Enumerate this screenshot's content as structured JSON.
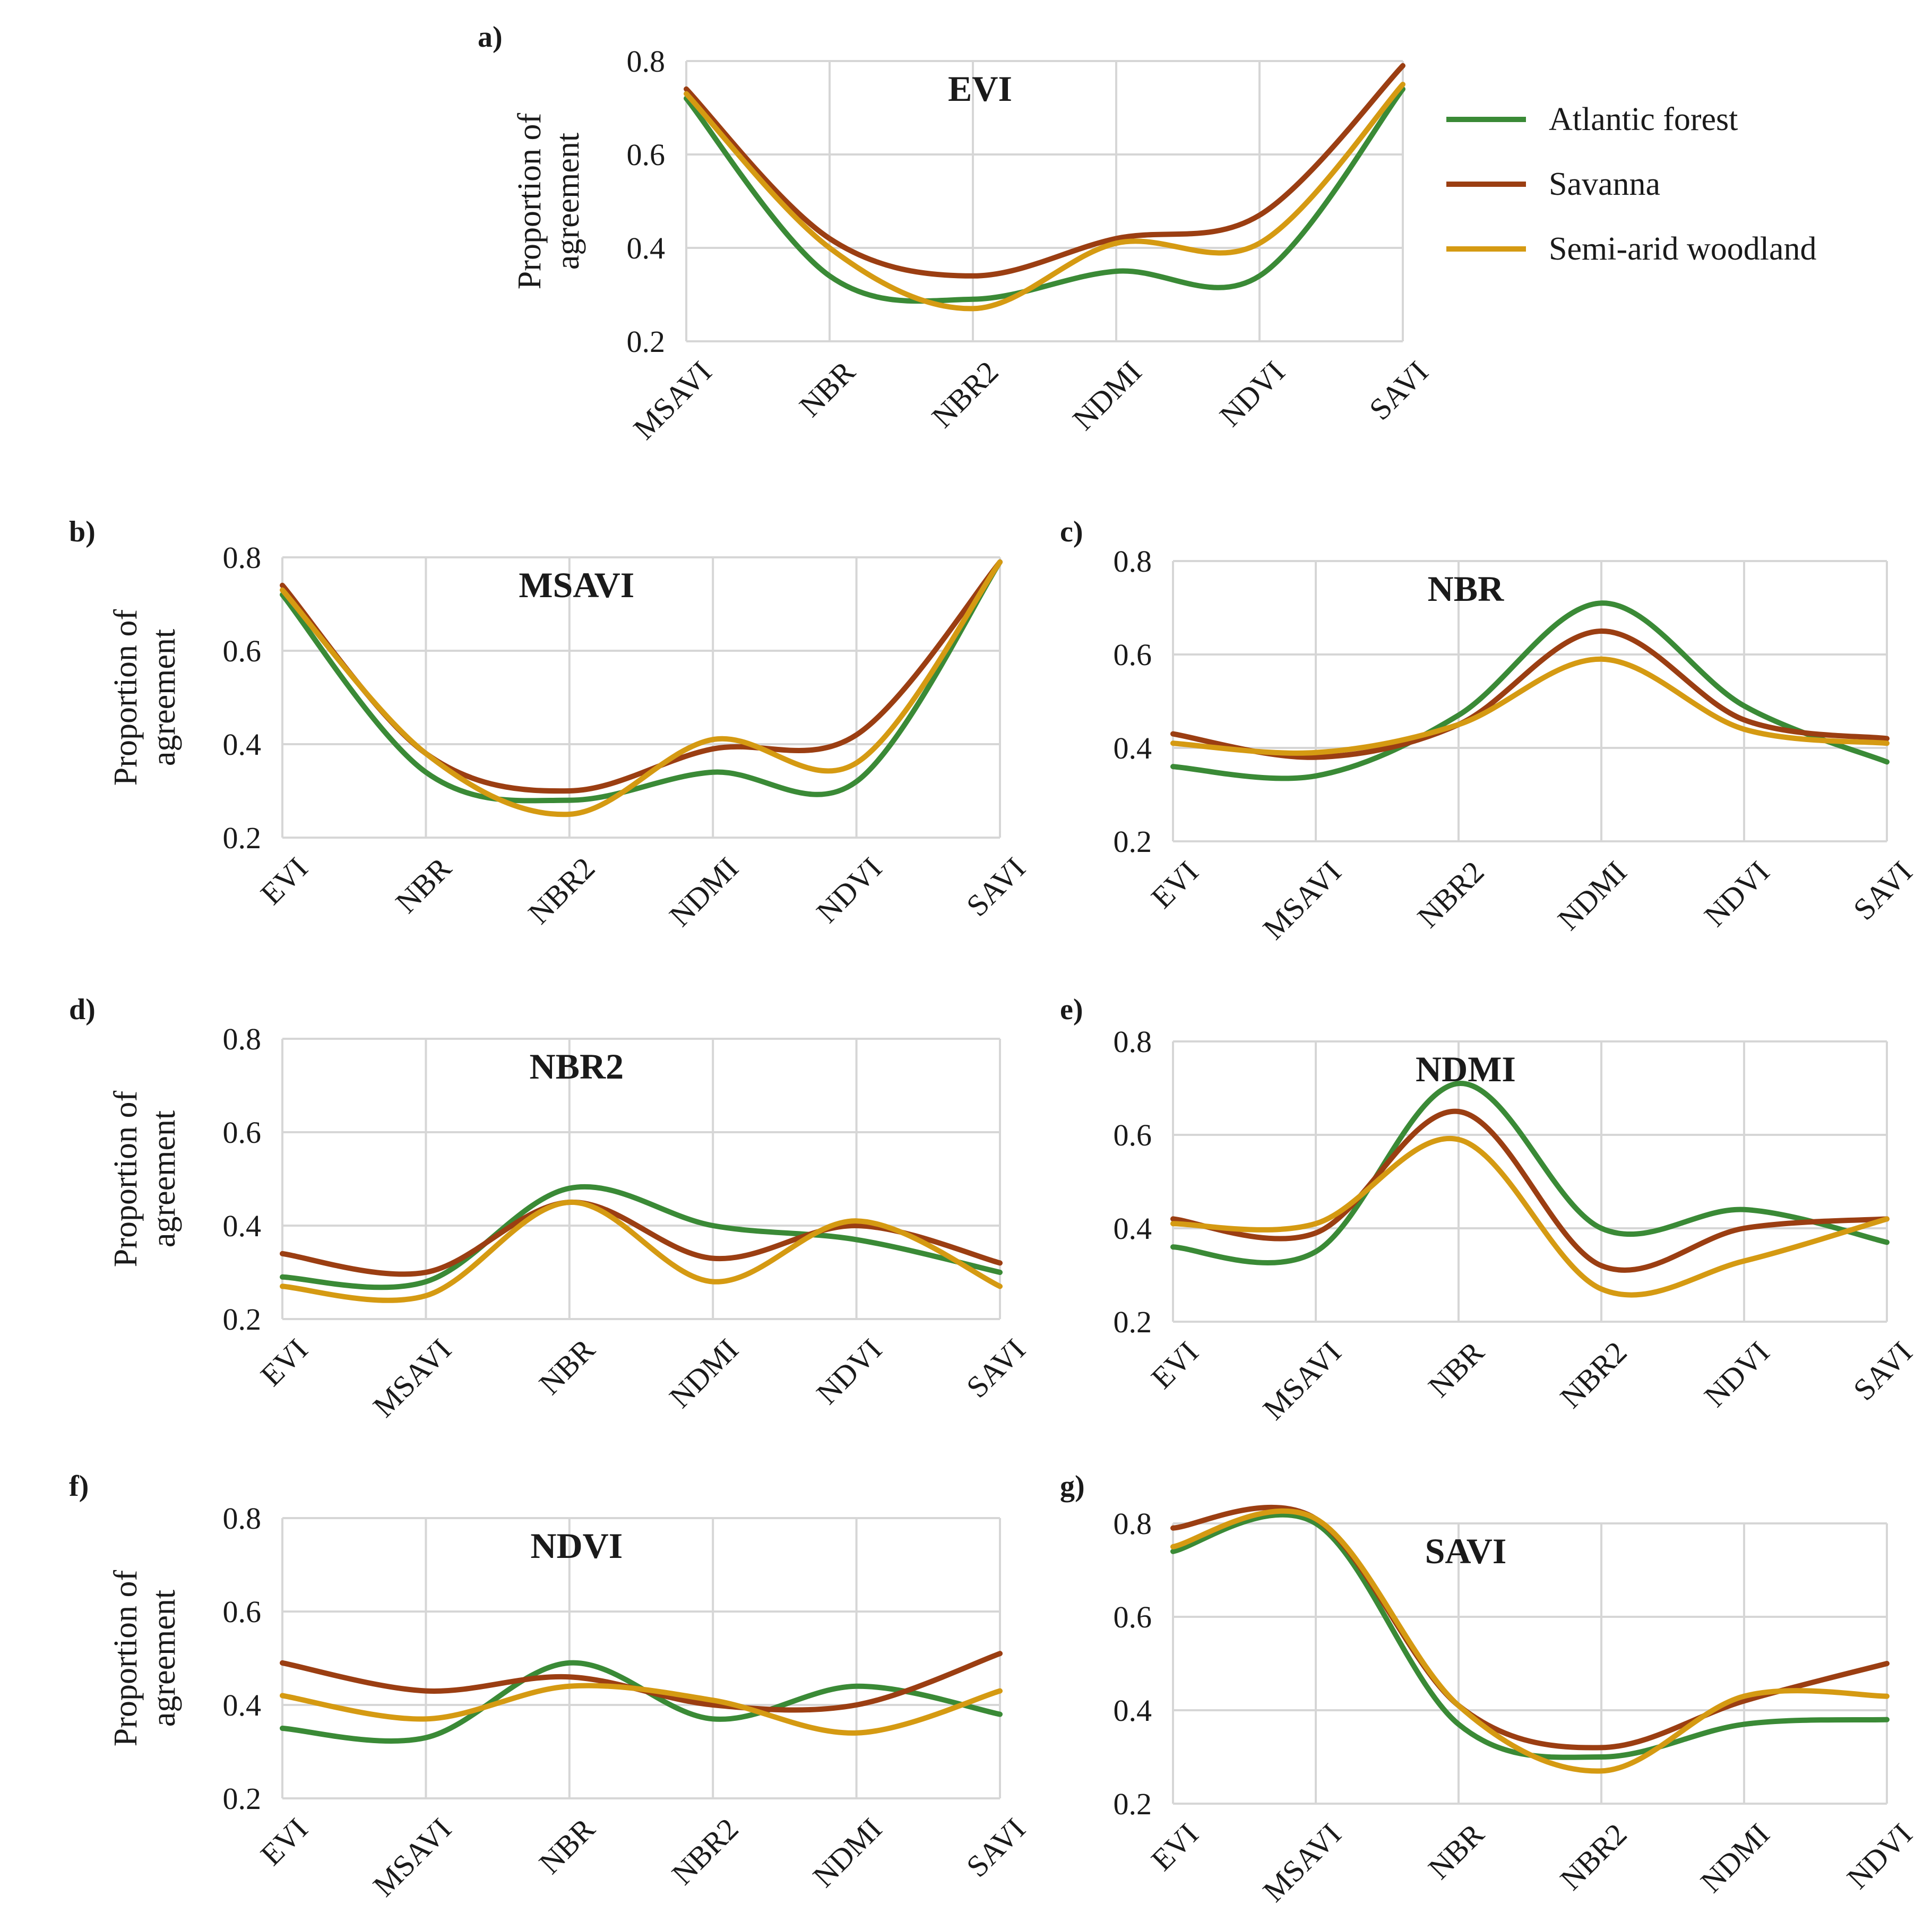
{
  "colors": {
    "Atlantic forest": "#3a8a36",
    "Savanna": "#9b3e12",
    "Semi-arid woodland": "#d59a12",
    "grid": "#d6d6d6"
  },
  "legend": [
    "Atlantic forest",
    "Savanna",
    "Semi-arid woodland"
  ],
  "chart_data": [
    {
      "panel": "a)",
      "type": "line",
      "title": "EVI",
      "ylabel": "Proportion of agreement",
      "ylim": [
        0.2,
        0.8
      ],
      "yticks": [
        "0.2",
        "0.4",
        "0.6",
        "0.8"
      ],
      "categories": [
        "MSAVI",
        "NBR",
        "NBR2",
        "NDMI",
        "NDVI",
        "SAVI"
      ],
      "series": [
        {
          "name": "Atlantic forest",
          "values": [
            0.72,
            0.34,
            0.29,
            0.35,
            0.34,
            0.74
          ]
        },
        {
          "name": "Savanna",
          "values": [
            0.74,
            0.42,
            0.34,
            0.42,
            0.47,
            0.79
          ]
        },
        {
          "name": "Semi-arid woodland",
          "values": [
            0.73,
            0.4,
            0.27,
            0.41,
            0.41,
            0.75
          ]
        }
      ]
    },
    {
      "panel": "b)",
      "type": "line",
      "title": "MSAVI",
      "ylabel": "Proportion of agreement",
      "ylim": [
        0.2,
        0.8
      ],
      "yticks": [
        "0.2",
        "0.4",
        "0.6",
        "0.8"
      ],
      "categories": [
        "EVI",
        "NBR",
        "NBR2",
        "NDMI",
        "NDVI",
        "SAVI"
      ],
      "series": [
        {
          "name": "Atlantic forest",
          "values": [
            0.72,
            0.34,
            0.28,
            0.34,
            0.32,
            0.79
          ]
        },
        {
          "name": "Savanna",
          "values": [
            0.74,
            0.38,
            0.3,
            0.39,
            0.42,
            0.79
          ]
        },
        {
          "name": "Semi-arid woodland",
          "values": [
            0.73,
            0.38,
            0.25,
            0.41,
            0.36,
            0.79
          ]
        }
      ]
    },
    {
      "panel": "c)",
      "type": "line",
      "title": "NBR",
      "ylabel": "",
      "ylim": [
        0.2,
        0.8
      ],
      "yticks": [
        "0.2",
        "0.4",
        "0.6",
        "0.8"
      ],
      "categories": [
        "EVI",
        "MSAVI",
        "NBR2",
        "NDMI",
        "NDVI",
        "SAVI"
      ],
      "series": [
        {
          "name": "Atlantic forest",
          "values": [
            0.36,
            0.34,
            0.47,
            0.71,
            0.49,
            0.37
          ]
        },
        {
          "name": "Savanna",
          "values": [
            0.43,
            0.38,
            0.45,
            0.65,
            0.46,
            0.42
          ]
        },
        {
          "name": "Semi-arid woodland",
          "values": [
            0.41,
            0.39,
            0.45,
            0.59,
            0.44,
            0.41
          ]
        }
      ]
    },
    {
      "panel": "d)",
      "type": "line",
      "title": "NBR2",
      "ylabel": "Proportion of agreement",
      "ylim": [
        0.2,
        0.8
      ],
      "yticks": [
        "0.2",
        "0.4",
        "0.6",
        "0.8"
      ],
      "categories": [
        "EVI",
        "MSAVI",
        "NBR",
        "NDMI",
        "NDVI",
        "SAVI"
      ],
      "series": [
        {
          "name": "Atlantic forest",
          "values": [
            0.29,
            0.28,
            0.48,
            0.4,
            0.37,
            0.3
          ]
        },
        {
          "name": "Savanna",
          "values": [
            0.34,
            0.3,
            0.45,
            0.33,
            0.4,
            0.32
          ]
        },
        {
          "name": "Semi-arid woodland",
          "values": [
            0.27,
            0.25,
            0.45,
            0.28,
            0.41,
            0.27
          ]
        }
      ]
    },
    {
      "panel": "e)",
      "type": "line",
      "title": "NDMI",
      "ylabel": "",
      "ylim": [
        0.2,
        0.8
      ],
      "yticks": [
        "0.2",
        "0.4",
        "0.6",
        "0.8"
      ],
      "categories": [
        "EVI",
        "MSAVI",
        "NBR",
        "NBR2",
        "NDVI",
        "SAVI"
      ],
      "series": [
        {
          "name": "Atlantic forest",
          "values": [
            0.36,
            0.35,
            0.71,
            0.4,
            0.44,
            0.37
          ]
        },
        {
          "name": "Savanna",
          "values": [
            0.42,
            0.39,
            0.65,
            0.32,
            0.4,
            0.42
          ]
        },
        {
          "name": "Semi-arid woodland",
          "values": [
            0.41,
            0.41,
            0.59,
            0.27,
            0.33,
            0.42
          ]
        }
      ]
    },
    {
      "panel": "f)",
      "type": "line",
      "title": "NDVI",
      "ylabel": "Proportion of agreement",
      "ylim": [
        0.2,
        0.8
      ],
      "yticks": [
        "0.2",
        "0.4",
        "0.6",
        "0.8"
      ],
      "categories": [
        "EVI",
        "MSAVI",
        "NBR",
        "NBR2",
        "NDMI",
        "SAVI"
      ],
      "series": [
        {
          "name": "Atlantic forest",
          "values": [
            0.35,
            0.33,
            0.49,
            0.37,
            0.44,
            0.38
          ]
        },
        {
          "name": "Savanna",
          "values": [
            0.49,
            0.43,
            0.46,
            0.4,
            0.4,
            0.51
          ]
        },
        {
          "name": "Semi-arid woodland",
          "values": [
            0.42,
            0.37,
            0.44,
            0.41,
            0.34,
            0.43
          ]
        }
      ]
    },
    {
      "panel": "g)",
      "type": "line",
      "title": "SAVI",
      "ylabel": "",
      "ylim": [
        0.2,
        0.8
      ],
      "yticks": [
        "0.2",
        "0.4",
        "0.6",
        "0.8"
      ],
      "categories": [
        "EVI",
        "MSAVI",
        "NBR",
        "NBR2",
        "NDMI",
        "NDVI"
      ],
      "series": [
        {
          "name": "Atlantic forest",
          "values": [
            0.74,
            0.8,
            0.37,
            0.3,
            0.37,
            0.38
          ]
        },
        {
          "name": "Savanna",
          "values": [
            0.79,
            0.81,
            0.41,
            0.32,
            0.42,
            0.5
          ]
        },
        {
          "name": "Semi-arid woodland",
          "values": [
            0.75,
            0.81,
            0.41,
            0.27,
            0.43,
            0.43
          ]
        }
      ]
    }
  ]
}
